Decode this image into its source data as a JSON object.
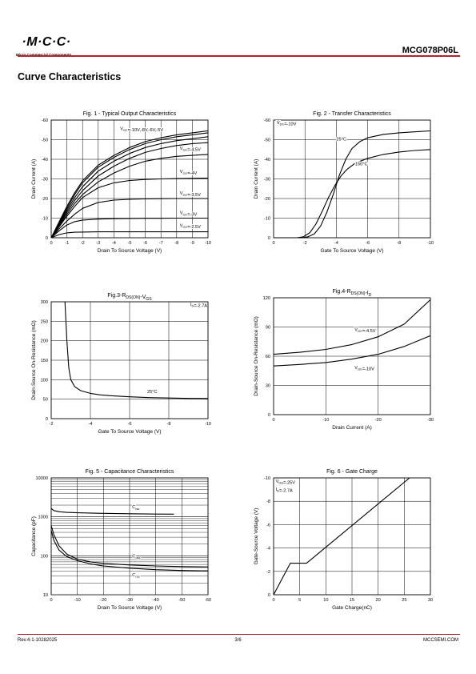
{
  "header": {
    "logo_text": "·M·C·C·",
    "logo_subtitle": "Micro Commercial Components",
    "part_number": "MCG078P06L"
  },
  "section_title": "Curve Characteristics",
  "footer": {
    "revision": "Rev.4-1-10282025",
    "page": "3/6",
    "website": "MCCSEMI.COM"
  },
  "chart_data": [
    {
      "id": "fig1",
      "type": "line",
      "title": "Fig. 1 - Typical Output Characteristics",
      "xlabel": "Drain To Source Voltage (V)",
      "ylabel": "Drain Current (A)",
      "xlim": [
        0,
        -10
      ],
      "ylim": [
        0,
        -60
      ],
      "xticks": [
        0,
        -1,
        -2,
        -3,
        -4,
        -5,
        -6,
        -7,
        -8,
        -9,
        -10
      ],
      "yticks": [
        0,
        -10,
        -20,
        -30,
        -40,
        -50,
        -60
      ],
      "grid": true,
      "series": [
        {
          "name": "VGS=-10V",
          "x": [
            0,
            -0.5,
            -1,
            -1.5,
            -2,
            -3,
            -4,
            -5,
            -6,
            -7,
            -8,
            -9,
            -10
          ],
          "y": [
            0,
            -8,
            -16,
            -23,
            -29,
            -37,
            -42,
            -46,
            -49,
            -51,
            -52.5,
            -53.5,
            -54.5
          ]
        },
        {
          "name": "-8V",
          "x": [
            0,
            -0.5,
            -1,
            -1.5,
            -2,
            -3,
            -4,
            -5,
            -6,
            -7,
            -8,
            -9,
            -10
          ],
          "y": [
            0,
            -7.5,
            -15,
            -22,
            -28,
            -36,
            -41,
            -45,
            -48,
            -50,
            -51.5,
            -52.5,
            -53.5
          ]
        },
        {
          "name": "-6V",
          "x": [
            0,
            -0.5,
            -1,
            -1.5,
            -2,
            -3,
            -4,
            -5,
            -6,
            -7,
            -8,
            -9,
            -10
          ],
          "y": [
            0,
            -7,
            -14,
            -20.5,
            -26,
            -34,
            -39,
            -43,
            -46,
            -48,
            -49.5,
            -50.5,
            -51.5
          ]
        },
        {
          "name": "-5V",
          "x": [
            0,
            -0.5,
            -1,
            -1.5,
            -2,
            -3,
            -4,
            -5,
            -6,
            -7,
            -8,
            -9,
            -10
          ],
          "y": [
            0,
            -6.5,
            -13,
            -19,
            -24,
            -31.5,
            -36.5,
            -40.5,
            -43.5,
            -45.5,
            -47,
            -48,
            -48.5
          ]
        },
        {
          "name": "VGS=-4.5V",
          "x": [
            0,
            -0.5,
            -1,
            -1.5,
            -2,
            -3,
            -4,
            -5,
            -6,
            -7,
            -8,
            -9,
            -10
          ],
          "y": [
            0,
            -6,
            -12,
            -17.5,
            -22,
            -28.5,
            -33,
            -36.5,
            -39,
            -40.5,
            -41.5,
            -42,
            -42.5
          ]
        },
        {
          "name": "VGS=-4V",
          "x": [
            0,
            -0.5,
            -1,
            -1.5,
            -2,
            -3,
            -4,
            -5,
            -6,
            -7,
            -8,
            -9,
            -10
          ],
          "y": [
            0,
            -5.5,
            -11,
            -16,
            -20.5,
            -25.5,
            -28,
            -29.2,
            -29.7,
            -30,
            -30.2,
            -30.3,
            -30.4
          ]
        },
        {
          "name": "VGS=-3.5V",
          "x": [
            0,
            -0.5,
            -1,
            -1.5,
            -2,
            -3,
            -4,
            -5,
            -6,
            -7,
            -8,
            -9,
            -10
          ],
          "y": [
            0,
            -4.5,
            -8.5,
            -12,
            -15,
            -18,
            -19.2,
            -19.6,
            -19.8,
            -19.9,
            -20,
            -20,
            -20
          ]
        },
        {
          "name": "VGS=-3V",
          "x": [
            0,
            -0.5,
            -1,
            -1.5,
            -2,
            -3,
            -4,
            -5,
            -6,
            -7,
            -8,
            -9,
            -10
          ],
          "y": [
            0,
            -3.5,
            -6.5,
            -8.2,
            -9,
            -9.5,
            -9.7,
            -9.8,
            -9.9,
            -9.9,
            -10,
            -10,
            -10
          ]
        },
        {
          "name": "VGS=-2.5V",
          "x": [
            0,
            -0.5,
            -1,
            -1.5,
            -2,
            -3,
            -4,
            -5,
            -6,
            -7,
            -8,
            -9,
            -10
          ],
          "y": [
            0,
            -1.6,
            -2.5,
            -2.8,
            -2.9,
            -3,
            -3,
            -3,
            -3,
            -3,
            -3,
            -3,
            -3
          ]
        }
      ],
      "annotations": [
        {
          "text": "VGS=-10V,-8V,-6V,-5V",
          "x": -4.4,
          "y": -55
        },
        {
          "text": "VGS=-4.5V",
          "x": -8.2,
          "y": -45
        },
        {
          "text": "VGS=-4V",
          "x": -8.2,
          "y": -33
        },
        {
          "text": "VGS=-3.5V",
          "x": -8.2,
          "y": -22
        },
        {
          "text": "VGS=-3V",
          "x": -8.2,
          "y": -12
        },
        {
          "text": "VGS=-2.5V",
          "x": -8.2,
          "y": -5.5
        }
      ]
    },
    {
      "id": "fig2",
      "type": "line",
      "title": "Fig. 2 - Transfer Characteristics",
      "xlabel": "Gate To Source Voltage (V)",
      "ylabel": "Drain Current (A)",
      "xlim": [
        0,
        -10
      ],
      "ylim": [
        0,
        -60
      ],
      "xticks": [
        0,
        -2,
        -4,
        -6,
        -8,
        -10
      ],
      "yticks": [
        0,
        -10,
        -20,
        -30,
        -40,
        -50,
        -60
      ],
      "grid": true,
      "series": [
        {
          "name": "25°C",
          "x": [
            0,
            -1.8,
            -2.2,
            -2.6,
            -3,
            -3.4,
            -3.8,
            -4.2,
            -4.6,
            -5,
            -5.5,
            -6,
            -7,
            -8,
            -9,
            -10
          ],
          "y": [
            0,
            0,
            -0.5,
            -2,
            -6,
            -13,
            -22,
            -32,
            -40,
            -45.5,
            -49,
            -51,
            -52.7,
            -53.5,
            -54,
            -54.5
          ]
        },
        {
          "name": "150°C",
          "x": [
            0,
            -1.5,
            -1.9,
            -2.3,
            -2.7,
            -3.1,
            -3.5,
            -3.9,
            -4.3,
            -4.7,
            -5.2,
            -6,
            -7,
            -8,
            -9,
            -10
          ],
          "y": [
            0,
            0,
            -0.5,
            -2.5,
            -7,
            -13.5,
            -20.5,
            -26.5,
            -31.5,
            -35,
            -38,
            -40.5,
            -42.5,
            -43.7,
            -44.5,
            -45
          ]
        }
      ],
      "annotations": [
        {
          "text": "VDS=-10V",
          "x": -0.2,
          "y": -58
        },
        {
          "text": "25°C",
          "x": -4,
          "y": -49.5
        },
        {
          "text": "150°C",
          "x": -5.2,
          "y": -37
        }
      ]
    },
    {
      "id": "fig3",
      "type": "line",
      "title": "Fig.3-RDS(ON)-VGS",
      "xlabel": "Gate To Source Voltage (V)",
      "ylabel": "Drain-Source On-Resistance (mΩ)",
      "xlim": [
        -2,
        -10
      ],
      "ylim": [
        0,
        300
      ],
      "xticks": [
        -2,
        -4,
        -6,
        -8,
        -10
      ],
      "yticks": [
        0,
        50,
        100,
        150,
        200,
        250,
        300
      ],
      "grid": true,
      "series": [
        {
          "name": "25°C",
          "x": [
            -2.7,
            -2.8,
            -2.9,
            -3,
            -3.2,
            -3.5,
            -4,
            -4.5,
            -5,
            -6,
            -7,
            -8,
            -9,
            -10
          ],
          "y": [
            300,
            200,
            130,
            100,
            82,
            72,
            65,
            61,
            59,
            56,
            54,
            53,
            52,
            51.5
          ]
        }
      ],
      "annotations": [
        {
          "text": "ID=-2.7A",
          "x": -9.1,
          "y": 290
        },
        {
          "text": "25°C",
          "x": -6.9,
          "y": 66
        }
      ]
    },
    {
      "id": "fig4",
      "type": "line",
      "title": "Fig.4-RDS(ON)-ID",
      "xlabel": "Drain Current (A)",
      "ylabel": "Drain-Source On-Resistance (mΩ)",
      "xlim": [
        0,
        -30
      ],
      "ylim": [
        0,
        120
      ],
      "xticks": [
        0,
        -10,
        -20,
        -30
      ],
      "yticks": [
        0,
        30,
        60,
        90,
        120
      ],
      "grid": true,
      "series": [
        {
          "name": "VGS=-4.5V",
          "x": [
            0,
            -5,
            -10,
            -15,
            -20,
            -25,
            -30
          ],
          "y": [
            62,
            64,
            67,
            72,
            80,
            93,
            118
          ]
        },
        {
          "name": "VGS=-10V",
          "x": [
            0,
            -5,
            -10,
            -15,
            -20,
            -25,
            -30
          ],
          "y": [
            50,
            51.5,
            53.5,
            57,
            62,
            70,
            81
          ]
        }
      ],
      "annotations": [
        {
          "text": "VGS=-4.5V",
          "x": -15.5,
          "y": 86
        },
        {
          "text": "VGS=-10V",
          "x": -15.5,
          "y": 47
        }
      ]
    },
    {
      "id": "fig5",
      "type": "line",
      "title": "Fig. 5 - Capacitance Characteristics",
      "xlabel": "Drain To Source Voltage (V)",
      "ylabel": "Capacitance (pF)",
      "xlim": [
        0,
        -60
      ],
      "ylim": [
        10,
        10000
      ],
      "yscale": "log",
      "xticks": [
        0,
        -10,
        -20,
        -30,
        -40,
        -50,
        -60
      ],
      "yticks": [
        10,
        100,
        1000,
        10000
      ],
      "grid": true,
      "series": [
        {
          "name": "Ciss",
          "x": [
            0,
            -1,
            -3,
            -6,
            -10,
            -20,
            -30,
            -40,
            -47
          ],
          "y": [
            1650,
            1450,
            1350,
            1300,
            1270,
            1230,
            1200,
            1180,
            1170
          ]
        },
        {
          "name": "Coss",
          "x": [
            0,
            -1,
            -3,
            -6,
            -10,
            -15,
            -20,
            -30,
            -40,
            -50,
            -60
          ],
          "y": [
            600,
            350,
            180,
            110,
            82,
            70,
            64,
            58,
            55,
            53,
            52
          ]
        },
        {
          "name": "Crss",
          "x": [
            0,
            -1,
            -3,
            -6,
            -10,
            -15,
            -20,
            -30,
            -40,
            -50,
            -60
          ],
          "y": [
            450,
            250,
            140,
            95,
            75,
            62,
            55,
            48,
            44,
            42,
            41
          ]
        }
      ],
      "annotations": [
        {
          "text": "Ciss",
          "x": -31,
          "y": 1650
        },
        {
          "text": "Coss",
          "x": -31,
          "y": 90
        },
        {
          "text": "Crss",
          "x": -31,
          "y": 30
        }
      ]
    },
    {
      "id": "fig6",
      "type": "line",
      "title": "Fig. 6 - Gate Charge",
      "xlabel": "Gate Charge(nC)",
      "ylabel": "Gate-Source Voltage (V)",
      "xlim": [
        0,
        30
      ],
      "ylim": [
        0,
        -10
      ],
      "xticks": [
        0,
        5,
        10,
        15,
        20,
        25,
        30
      ],
      "yticks": [
        0,
        -2,
        -4,
        -6,
        -8,
        -10
      ],
      "grid": true,
      "series": [
        {
          "name": "VGS",
          "x": [
            0,
            3.2,
            6.3,
            26
          ],
          "y": [
            0,
            -2.7,
            -2.7,
            -10
          ]
        }
      ],
      "annotations": [
        {
          "text": "VDS=-25V",
          "x": 0.4,
          "y": -9.6
        },
        {
          "text": "ID=-2.7A",
          "x": 0.4,
          "y": -8.9
        }
      ]
    }
  ]
}
